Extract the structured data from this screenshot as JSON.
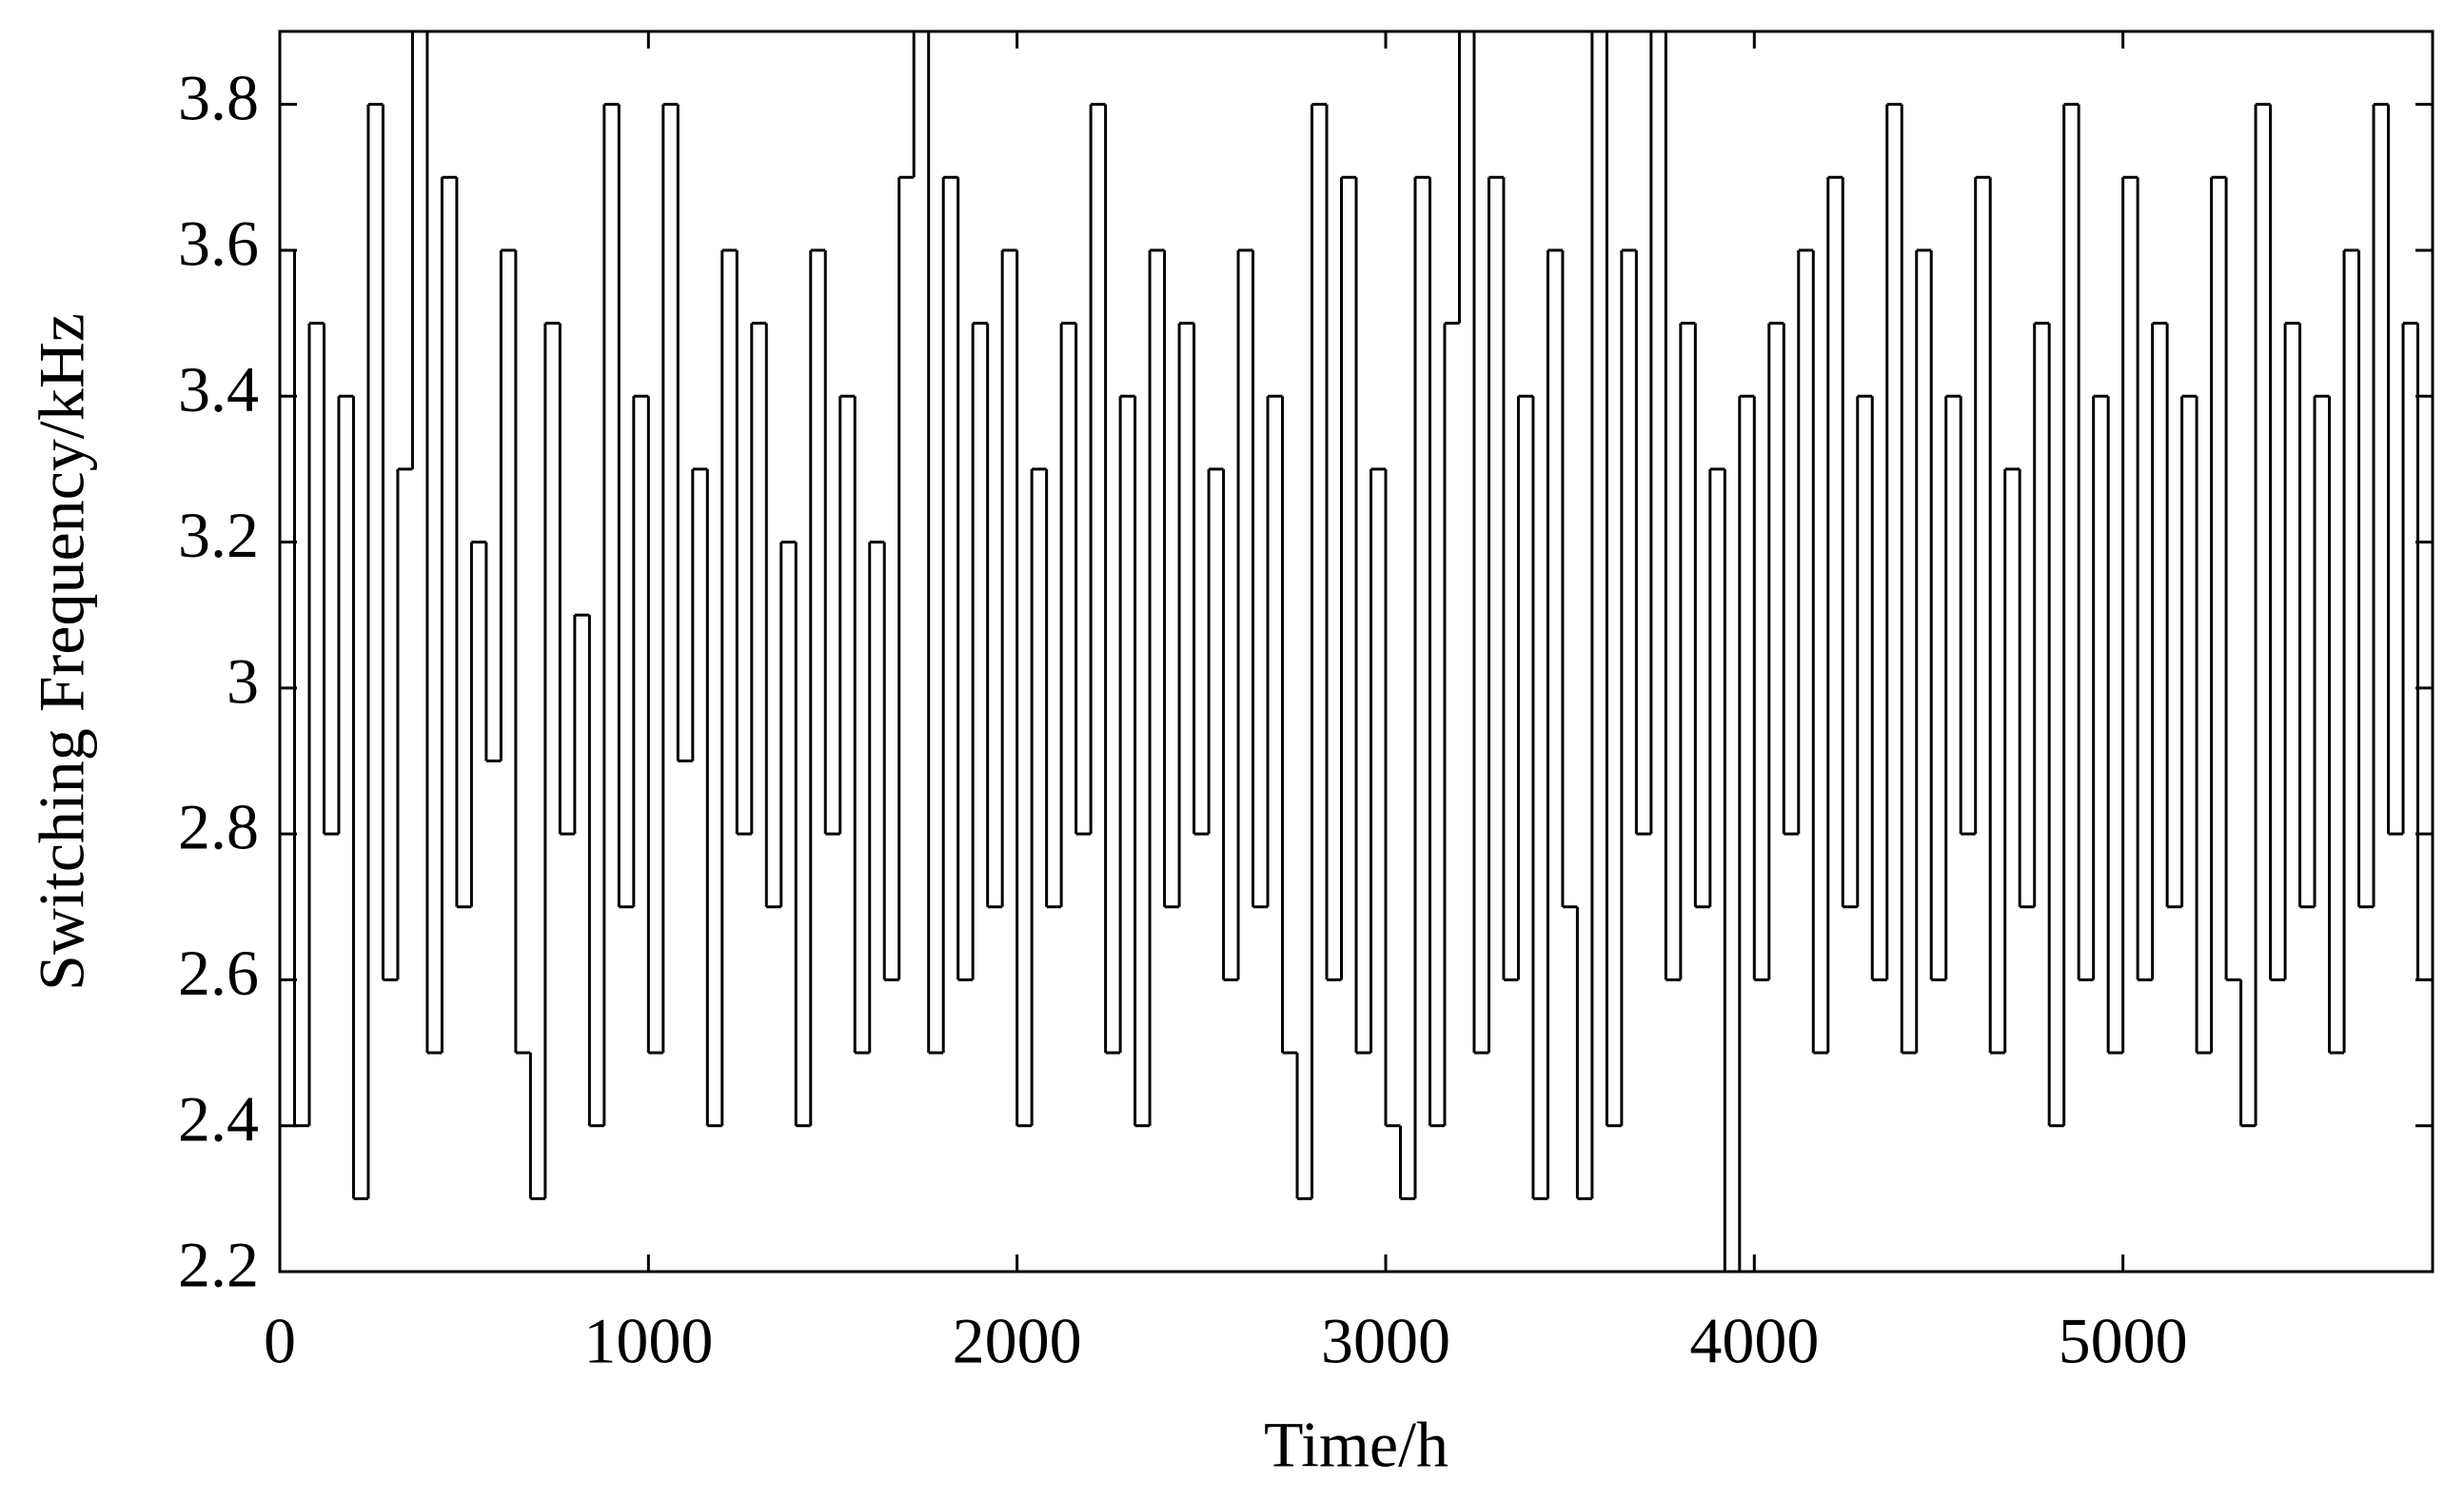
{
  "chart_data": {
    "type": "line",
    "drawstyle": "steps-post",
    "x_label": "Time/h",
    "y_label": "Switching Frequency/kHz",
    "xlim": [
      0,
      5840
    ],
    "ylim": [
      2.2,
      3.9
    ],
    "xticks": [
      0,
      1000,
      2000,
      3000,
      4000,
      5000
    ],
    "yticks": [
      2.2,
      2.4,
      2.6,
      2.8,
      3,
      3.2,
      3.4,
      3.6,
      3.8
    ],
    "grid": false,
    "series": [
      {
        "color": "#000000",
        "x": [
          0,
          40,
          80,
          120,
          160,
          200,
          240,
          280,
          320,
          360,
          400,
          440,
          480,
          520,
          560,
          600,
          640,
          680,
          720,
          760,
          800,
          840,
          880,
          920,
          960,
          1000,
          1040,
          1080,
          1120,
          1160,
          1200,
          1240,
          1280,
          1320,
          1360,
          1400,
          1440,
          1480,
          1520,
          1560,
          1600,
          1640,
          1680,
          1720,
          1760,
          1800,
          1840,
          1880,
          1920,
          1960,
          2000,
          2040,
          2080,
          2120,
          2160,
          2200,
          2240,
          2280,
          2320,
          2360,
          2400,
          2440,
          2480,
          2520,
          2560,
          2600,
          2640,
          2680,
          2720,
          2760,
          2800,
          2840,
          2880,
          2920,
          2960,
          3000,
          3040,
          3080,
          3120,
          3160,
          3200,
          3240,
          3280,
          3320,
          3360,
          3400,
          3440,
          3480,
          3520,
          3560,
          3600,
          3640,
          3680,
          3720,
          3760,
          3800,
          3840,
          3880,
          3920,
          3960,
          4000,
          4040,
          4080,
          4120,
          4160,
          4200,
          4240,
          4280,
          4320,
          4360,
          4400,
          4440,
          4480,
          4520,
          4560,
          4600,
          4640,
          4680,
          4720,
          4760,
          4800,
          4840,
          4880,
          4920,
          4960,
          5000,
          5040,
          5080,
          5120,
          5160,
          5200,
          5240,
          5280,
          5320,
          5360,
          5400,
          5440,
          5480,
          5520,
          5560,
          5600,
          5640,
          5680,
          5720,
          5760,
          5800,
          5840
        ],
        "values": [
          3.6,
          2.4,
          3.5,
          2.8,
          3.4,
          2.3,
          3.8,
          2.6,
          3.3,
          3.9,
          2.5,
          3.7,
          2.7,
          3.2,
          2.9,
          3.6,
          2.5,
          2.3,
          3.5,
          2.8,
          3.1,
          2.4,
          3.8,
          2.7,
          3.4,
          2.5,
          3.8,
          2.9,
          3.3,
          2.4,
          3.6,
          2.8,
          3.5,
          2.7,
          3.2,
          2.4,
          3.6,
          2.8,
          3.4,
          2.5,
          3.2,
          2.6,
          3.7,
          3.9,
          2.5,
          3.7,
          2.6,
          3.5,
          2.7,
          3.6,
          2.4,
          3.3,
          2.7,
          3.5,
          2.8,
          3.8,
          2.5,
          3.4,
          2.4,
          3.6,
          2.7,
          3.5,
          2.8,
          3.3,
          2.6,
          3.6,
          2.7,
          3.4,
          2.5,
          2.3,
          3.8,
          2.6,
          3.7,
          2.5,
          3.3,
          2.4,
          2.3,
          3.7,
          2.4,
          3.5,
          3.9,
          2.5,
          3.7,
          2.6,
          3.4,
          2.3,
          3.6,
          2.7,
          2.3,
          3.9,
          2.4,
          3.6,
          2.8,
          3.9,
          2.6,
          3.5,
          2.7,
          3.3,
          2.2,
          3.4,
          2.6,
          3.5,
          2.8,
          3.6,
          2.5,
          3.7,
          2.7,
          3.4,
          2.6,
          3.8,
          2.5,
          3.6,
          2.6,
          3.4,
          2.8,
          3.7,
          2.5,
          3.3,
          2.7,
          3.5,
          2.4,
          3.8,
          2.6,
          3.4,
          2.5,
          3.7,
          2.6,
          3.5,
          2.7,
          3.4,
          2.5,
          3.7,
          2.6,
          2.4,
          3.8,
          2.6,
          3.5,
          2.7,
          3.4,
          2.5,
          3.6,
          2.7,
          3.8,
          2.8,
          3.5,
          2.6,
          3.6
        ]
      }
    ]
  }
}
